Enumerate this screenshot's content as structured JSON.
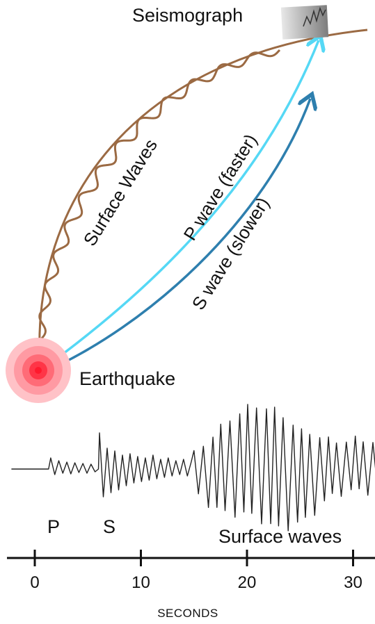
{
  "labels": {
    "seismograph": "Seismograph",
    "earthquake": "Earthquake",
    "surface_waves_path": "Surface Waves",
    "p_wave": "P wave (faster)",
    "s_wave": "S wave (slower)",
    "p_marker": "P",
    "s_marker": "S",
    "surface_waves_trace": "Surface waves"
  },
  "colors": {
    "surface_path": "#9b6a43",
    "p_wave": "#55d8f5",
    "s_wave": "#2e7fae",
    "epicenter": "#ff3a4a",
    "trace": "#222222"
  },
  "chart_data": {
    "type": "line",
    "title": "",
    "xlabel": "SECONDS",
    "ylabel": "",
    "x_ticks": [
      0,
      10,
      20,
      30
    ],
    "xlim": [
      -2.5,
      32
    ],
    "phases": [
      {
        "name": "P",
        "arrival_s": 1.5
      },
      {
        "name": "S",
        "arrival_s": 6
      },
      {
        "name": "Surface waves",
        "arrival_s": 15
      }
    ]
  }
}
